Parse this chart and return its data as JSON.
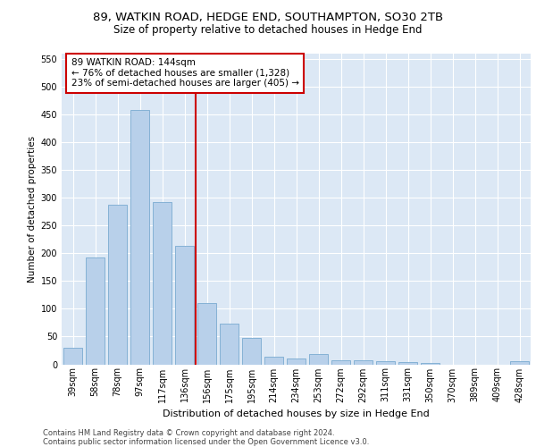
{
  "title1": "89, WATKIN ROAD, HEDGE END, SOUTHAMPTON, SO30 2TB",
  "title2": "Size of property relative to detached houses in Hedge End",
  "xlabel": "Distribution of detached houses by size in Hedge End",
  "ylabel": "Number of detached properties",
  "categories": [
    "39sqm",
    "58sqm",
    "78sqm",
    "97sqm",
    "117sqm",
    "136sqm",
    "156sqm",
    "175sqm",
    "195sqm",
    "214sqm",
    "234sqm",
    "253sqm",
    "272sqm",
    "292sqm",
    "311sqm",
    "331sqm",
    "350sqm",
    "370sqm",
    "389sqm",
    "409sqm",
    "428sqm"
  ],
  "values": [
    30,
    192,
    288,
    458,
    292,
    213,
    110,
    73,
    47,
    13,
    10,
    18,
    8,
    8,
    5,
    4,
    2,
    0,
    0,
    0,
    5
  ],
  "bar_color": "#b8d0ea",
  "bar_edge_color": "#7aaad0",
  "vline_color": "#cc0000",
  "vline_pos": 5.5,
  "annotation_text": "89 WATKIN ROAD: 144sqm\n← 76% of detached houses are smaller (1,328)\n23% of semi-detached houses are larger (405) →",
  "annotation_box_edgecolor": "#cc0000",
  "footer1": "Contains HM Land Registry data © Crown copyright and database right 2024.",
  "footer2": "Contains public sector information licensed under the Open Government Licence v3.0.",
  "ylim": [
    0,
    560
  ],
  "yticks": [
    0,
    50,
    100,
    150,
    200,
    250,
    300,
    350,
    400,
    450,
    500,
    550
  ],
  "bg_color": "#dce8f5",
  "fig_bg": "#ffffff",
  "title1_fontsize": 9.5,
  "title2_fontsize": 8.5,
  "ylabel_fontsize": 7.5,
  "xlabel_fontsize": 8.0,
  "tick_fontsize": 7.0,
  "ann_fontsize": 7.5,
  "footer_fontsize": 6.0
}
